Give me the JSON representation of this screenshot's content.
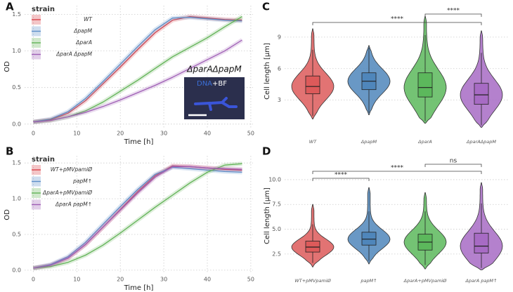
{
  "chart_data": [
    {
      "type": "line",
      "panel": "A",
      "xlabel": "Time [h]",
      "ylabel": "OD",
      "legend_title": "strain",
      "grid": true,
      "xlim": [
        -2,
        50.5
      ],
      "ylim": [
        -0.05,
        1.62
      ],
      "xticks": [
        0,
        10,
        20,
        30,
        40,
        50
      ],
      "yticks": [
        {
          "value": 0,
          "label": "0.0"
        },
        0.5,
        {
          "value": 1,
          "label": "1.0"
        },
        1.5
      ],
      "x": [
        0,
        4,
        8,
        12,
        16,
        20,
        24,
        28,
        32,
        36,
        40,
        44,
        48
      ],
      "series": [
        {
          "name": "WT",
          "color": "#d9424a",
          "values": [
            0.03,
            0.06,
            0.15,
            0.32,
            0.55,
            0.78,
            1.02,
            1.25,
            1.42,
            1.47,
            1.45,
            1.43,
            1.42
          ]
        },
        {
          "name": "ΔpapM",
          "color": "#5d8fc9",
          "values": [
            0.03,
            0.07,
            0.17,
            0.35,
            0.58,
            0.82,
            1.06,
            1.29,
            1.45,
            1.46,
            1.44,
            1.42,
            1.41
          ]
        },
        {
          "name": "ΔparA",
          "color": "#62b357",
          "values": [
            0.03,
            0.05,
            0.1,
            0.18,
            0.3,
            0.45,
            0.6,
            0.76,
            0.92,
            1.05,
            1.18,
            1.33,
            1.47
          ]
        },
        {
          "name": "ΔparA ΔpapM",
          "color": "#9f5fb5",
          "values": [
            0.03,
            0.05,
            0.1,
            0.16,
            0.24,
            0.33,
            0.43,
            0.53,
            0.64,
            0.76,
            0.88,
            1.0,
            1.15
          ]
        }
      ],
      "inset": {
        "title": "ΔparAΔpapM",
        "stain": "DNA",
        "channel": "+BF"
      }
    },
    {
      "type": "line",
      "panel": "B",
      "xlabel": "Time [h]",
      "ylabel": "OD",
      "legend_title": "strain",
      "grid": true,
      "xlim": [
        -2,
        50.5
      ],
      "ylim": [
        -0.05,
        1.6
      ],
      "xticks": [
        0,
        10,
        20,
        30,
        40,
        50
      ],
      "yticks": [
        {
          "value": 0,
          "label": "0.0"
        },
        0.5,
        {
          "value": 1,
          "label": "1.0"
        },
        1.5
      ],
      "x": [
        0,
        4,
        8,
        12,
        16,
        20,
        24,
        28,
        32,
        36,
        40,
        44,
        48
      ],
      "series": [
        {
          "name": "WT+pMVpamiØ",
          "color": "#d9424a",
          "values": [
            0.03,
            0.07,
            0.17,
            0.36,
            0.6,
            0.85,
            1.1,
            1.32,
            1.46,
            1.45,
            1.43,
            1.41,
            1.4
          ]
        },
        {
          "name": "papM↑",
          "color": "#5d8fc9",
          "values": [
            0.03,
            0.08,
            0.19,
            0.39,
            0.64,
            0.89,
            1.13,
            1.34,
            1.44,
            1.42,
            1.4,
            1.38,
            1.37
          ]
        },
        {
          "name": "ΔparA+pMVpamiØ",
          "color": "#62b357",
          "values": [
            0.03,
            0.05,
            0.11,
            0.21,
            0.35,
            0.52,
            0.7,
            0.88,
            1.05,
            1.22,
            1.37,
            1.47,
            1.49
          ]
        },
        {
          "name": "ΔparA papM↑",
          "color": "#9f5fb5",
          "values": [
            0.03,
            0.07,
            0.17,
            0.36,
            0.6,
            0.84,
            1.08,
            1.3,
            1.45,
            1.45,
            1.43,
            1.42,
            1.41
          ]
        }
      ]
    },
    {
      "type": "violin",
      "panel": "C",
      "ylabel": "Cell length [µm]",
      "grid": true,
      "ylim": [
        -0.5,
        12
      ],
      "yticks": [
        3,
        6,
        9
      ],
      "categories": [
        "WT",
        "ΔpapM",
        "ΔparA",
        "ΔparAΔpapM"
      ],
      "colors": [
        "#dd5a5a",
        "#4f86bb",
        "#5cb85c",
        "#a76bc4"
      ],
      "boxes": [
        {
          "whisker_low": 1.5,
          "q1": 3.6,
          "median": 4.3,
          "q3": 5.3,
          "whisker_high": 7.8,
          "violin": [
            1.2,
            9.8
          ]
        },
        {
          "whisker_low": 1.8,
          "q1": 4.0,
          "median": 4.8,
          "q3": 5.6,
          "whisker_high": 8.0,
          "violin": [
            1.6,
            8.2
          ]
        },
        {
          "whisker_low": 1.0,
          "q1": 3.3,
          "median": 4.2,
          "q3": 5.6,
          "whisker_high": 9.2,
          "violin": [
            0.8,
            11.0
          ]
        },
        {
          "whisker_low": 0.6,
          "q1": 2.6,
          "median": 3.5,
          "q3": 4.6,
          "whisker_high": 7.5,
          "violin": [
            0.4,
            9.6
          ]
        }
      ],
      "significance": [
        {
          "from": 2,
          "to": 3,
          "label": "****"
        },
        {
          "from": 0,
          "to": 3,
          "label": "****"
        }
      ]
    },
    {
      "type": "violin",
      "panel": "D",
      "ylabel": "Cell length [µm]",
      "grid": true,
      "ylim": [
        0.3,
        12.4
      ],
      "yticks": [
        2.5,
        {
          "value": 5,
          "label": "5.0"
        },
        7.5,
        {
          "value": 10,
          "label": "10.0"
        }
      ],
      "categories": [
        "WT+pMVpamiØ",
        "papM↑",
        "ΔparA+pMVpamiØ",
        "ΔparA papM↑"
      ],
      "colors": [
        "#dd5a5a",
        "#4f86bb",
        "#5cb85c",
        "#a76bc4"
      ],
      "boxes": [
        {
          "whisker_low": 1.6,
          "q1": 2.7,
          "median": 3.2,
          "q3": 3.8,
          "whisker_high": 5.5,
          "violin": [
            1.2,
            7.5
          ]
        },
        {
          "whisker_low": 1.8,
          "q1": 3.4,
          "median": 4.0,
          "q3": 4.7,
          "whisker_high": 6.8,
          "violin": [
            1.5,
            9.2
          ]
        },
        {
          "whisker_low": 1.4,
          "q1": 2.9,
          "median": 3.7,
          "q3": 4.5,
          "whisker_high": 6.8,
          "violin": [
            1.0,
            8.7
          ]
        },
        {
          "whisker_low": 1.1,
          "q1": 2.6,
          "median": 3.3,
          "q3": 4.6,
          "whisker_high": 7.6,
          "violin": [
            0.9,
            9.7
          ]
        }
      ],
      "significance": [
        {
          "from": 2,
          "to": 3,
          "label": "ns"
        },
        {
          "from": 0,
          "to": 3,
          "label": "****"
        },
        {
          "from": 0,
          "to": 1,
          "label": "****"
        }
      ]
    }
  ]
}
